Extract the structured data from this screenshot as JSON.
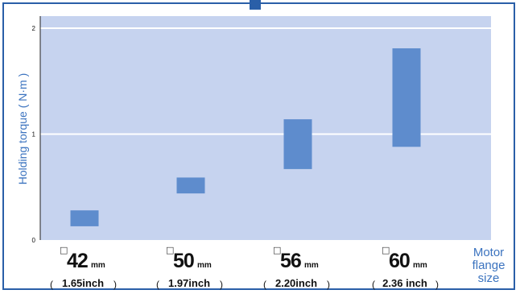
{
  "chart_data": {
    "type": "range-bar",
    "ylabel": "Holding torque ( N·m )",
    "xlabel_lines": [
      "Motor",
      "flange",
      "size"
    ],
    "ylim": [
      0,
      2
    ],
    "yticks": [
      "0",
      "1",
      "2"
    ],
    "grid": true,
    "categories": [
      {
        "size": "42",
        "unit": "mm",
        "inch": "1.65inch",
        "low": 0.13,
        "high": 0.28
      },
      {
        "size": "50",
        "unit": "mm",
        "inch": "1.97inch",
        "low": 0.44,
        "high": 0.59
      },
      {
        "size": "56",
        "unit": "mm",
        "inch": "2.20inch",
        "low": 0.67,
        "high": 1.14
      },
      {
        "size": "60",
        "unit": "mm",
        "inch": "2.36 inch",
        "low": 0.88,
        "high": 1.81
      }
    ],
    "colors": {
      "plot_background": "#c6d3ef",
      "bar": "#5e8ccd",
      "grid": "#ffffff",
      "frame": "#2a5fa8",
      "label": "#3b73bf",
      "text": "#111111"
    },
    "square_symbol": "□",
    "paren_open": "(",
    "paren_close": ")"
  }
}
